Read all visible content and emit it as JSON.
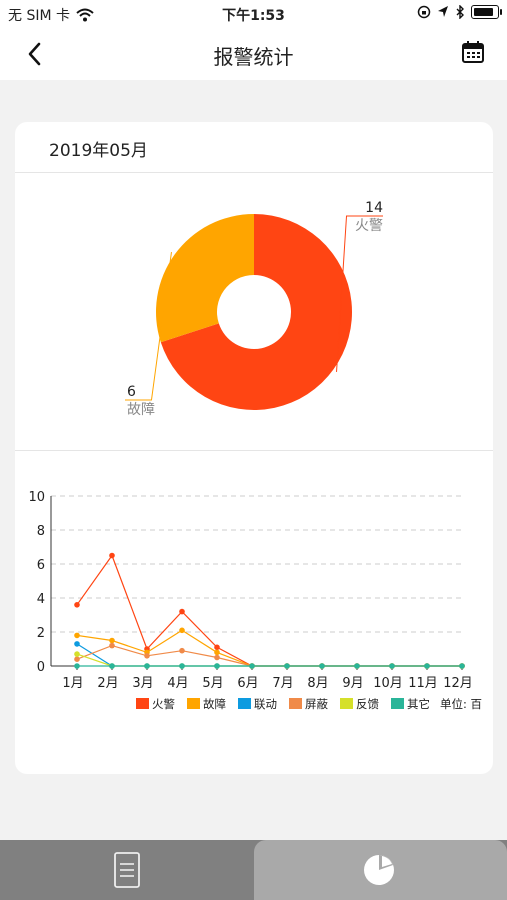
{
  "status_bar": {
    "carrier": "无 SIM 卡",
    "time": "下午1:53"
  },
  "header": {
    "title": "报警统计"
  },
  "month_label": "2019年05月",
  "pie": {
    "slices": [
      {
        "label": "火警",
        "value": 14,
        "color": "#ff4513"
      },
      {
        "label": "故障",
        "value": 6,
        "color": "#ffa500"
      }
    ]
  },
  "chart_data": {
    "type": "line",
    "categories": [
      "1月",
      "2月",
      "3月",
      "4月",
      "5月",
      "6月",
      "7月",
      "8月",
      "9月",
      "10月",
      "11月",
      "12月"
    ],
    "yticks": [
      0,
      2,
      4,
      6,
      8,
      10
    ],
    "ylim": [
      0,
      10
    ],
    "grid": true,
    "legend_position": "bottom",
    "unit_label": "单位: 百",
    "series": [
      {
        "name": "火警",
        "color": "#ff4513",
        "values": [
          3.6,
          6.5,
          1,
          3.2,
          1.1,
          0,
          0,
          0,
          0,
          0,
          0,
          0
        ]
      },
      {
        "name": "故障",
        "color": "#ffa500",
        "values": [
          1.8,
          1.5,
          0.8,
          2.1,
          0.8,
          0,
          0,
          0,
          0,
          0,
          0,
          0
        ]
      },
      {
        "name": "联动",
        "color": "#0d9be0",
        "values": [
          1.3,
          0,
          0,
          0,
          0,
          0,
          0,
          0,
          0,
          0,
          0,
          0
        ]
      },
      {
        "name": "屏蔽",
        "color": "#f08a48",
        "values": [
          0.4,
          1.2,
          0.6,
          0.9,
          0.5,
          0,
          0,
          0,
          0,
          0,
          0,
          0
        ]
      },
      {
        "name": "反馈",
        "color": "#d5e02a",
        "values": [
          0.7,
          0,
          0,
          0,
          0,
          0,
          0,
          0,
          0,
          0,
          0,
          0
        ]
      },
      {
        "name": "其它",
        "color": "#2ab599",
        "values": [
          0,
          0,
          0,
          0,
          0,
          0,
          0,
          0,
          0,
          0,
          0,
          0
        ]
      }
    ]
  },
  "tabs": [
    {
      "icon": "document-icon"
    },
    {
      "icon": "pie-chart-icon"
    }
  ]
}
